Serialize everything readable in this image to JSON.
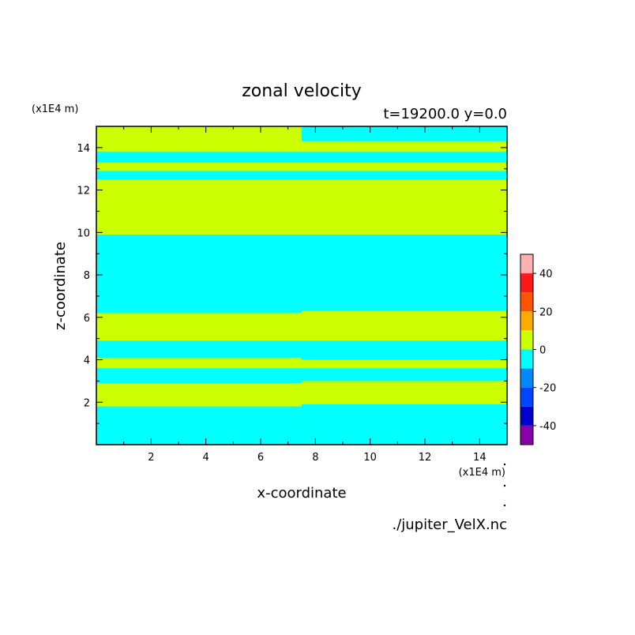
{
  "chart_data": {
    "type": "heatmap",
    "title": "zonal velocity",
    "subtitle": "t=19200.0 y=0.0",
    "xlabel": "x-coordinate",
    "ylabel": "z-coordinate",
    "x_unit": "(x1E4 m)",
    "y_unit": "(x1E4 m)",
    "source": "./jupiter_VelX.nc",
    "xlim": [
      0,
      15
    ],
    "ylim": [
      0,
      15
    ],
    "x_ticks": [
      "2",
      "4",
      "6",
      "8",
      "10",
      "12",
      "14"
    ],
    "y_ticks": [
      "2",
      "4",
      "6",
      "8",
      "10",
      "12",
      "14"
    ],
    "colorbar": {
      "range": [
        -50,
        50
      ],
      "tick_labels": [
        "40",
        "20",
        "0",
        "-20",
        "-40"
      ],
      "levels": [
        {
          "from": 40,
          "to": 50,
          "color": "#ffb0b0"
        },
        {
          "from": 30,
          "to": 40,
          "color": "#ff1a1a"
        },
        {
          "from": 20,
          "to": 30,
          "color": "#ff5500"
        },
        {
          "from": 10,
          "to": 20,
          "color": "#ffaa00"
        },
        {
          "from": 0,
          "to": 10,
          "color": "#ccff00"
        },
        {
          "from": -10,
          "to": 0,
          "color": "#00ffff"
        },
        {
          "from": -20,
          "to": -10,
          "color": "#0088ff"
        },
        {
          "from": -30,
          "to": -20,
          "color": "#0044ff"
        },
        {
          "from": -40,
          "to": -30,
          "color": "#0000cc"
        },
        {
          "from": -50,
          "to": -40,
          "color": "#8800aa"
        }
      ]
    },
    "regions": [
      {
        "level": 0,
        "x": [
          0,
          7.5
        ],
        "z": [
          0,
          15
        ]
      },
      {
        "level": -10,
        "x": [
          0,
          7.5
        ],
        "z": [
          0,
          1.8
        ]
      },
      {
        "level": -10,
        "x": [
          0,
          7.5
        ],
        "z": [
          2.9,
          3.6
        ]
      },
      {
        "level": -10,
        "x": [
          0,
          7.5
        ],
        "z": [
          4.1,
          4.9
        ]
      },
      {
        "level": -10,
        "x": [
          0,
          7.5
        ],
        "z": [
          6.2,
          9.9
        ]
      },
      {
        "level": -10,
        "x": [
          0,
          7.5
        ],
        "z": [
          12.5,
          12.9
        ]
      },
      {
        "level": -10,
        "x": [
          0,
          7.5
        ],
        "z": [
          13.3,
          13.8
        ]
      },
      {
        "level": -10,
        "x": [
          7.5,
          15
        ],
        "z": [
          0,
          15
        ]
      },
      {
        "level": 0,
        "x": [
          7.5,
          15
        ],
        "z": [
          1.9,
          3.0
        ]
      },
      {
        "level": 0,
        "x": [
          7.5,
          15
        ],
        "z": [
          3.6,
          4.0
        ]
      },
      {
        "level": 0,
        "x": [
          7.5,
          15
        ],
        "z": [
          4.9,
          6.3
        ]
      },
      {
        "level": 0,
        "x": [
          7.5,
          15
        ],
        "z": [
          9.9,
          12.5
        ]
      },
      {
        "level": 0,
        "x": [
          7.5,
          15
        ],
        "z": [
          12.9,
          13.3
        ]
      },
      {
        "level": 0,
        "x": [
          7.5,
          15
        ],
        "z": [
          13.8,
          14.3
        ]
      }
    ]
  }
}
